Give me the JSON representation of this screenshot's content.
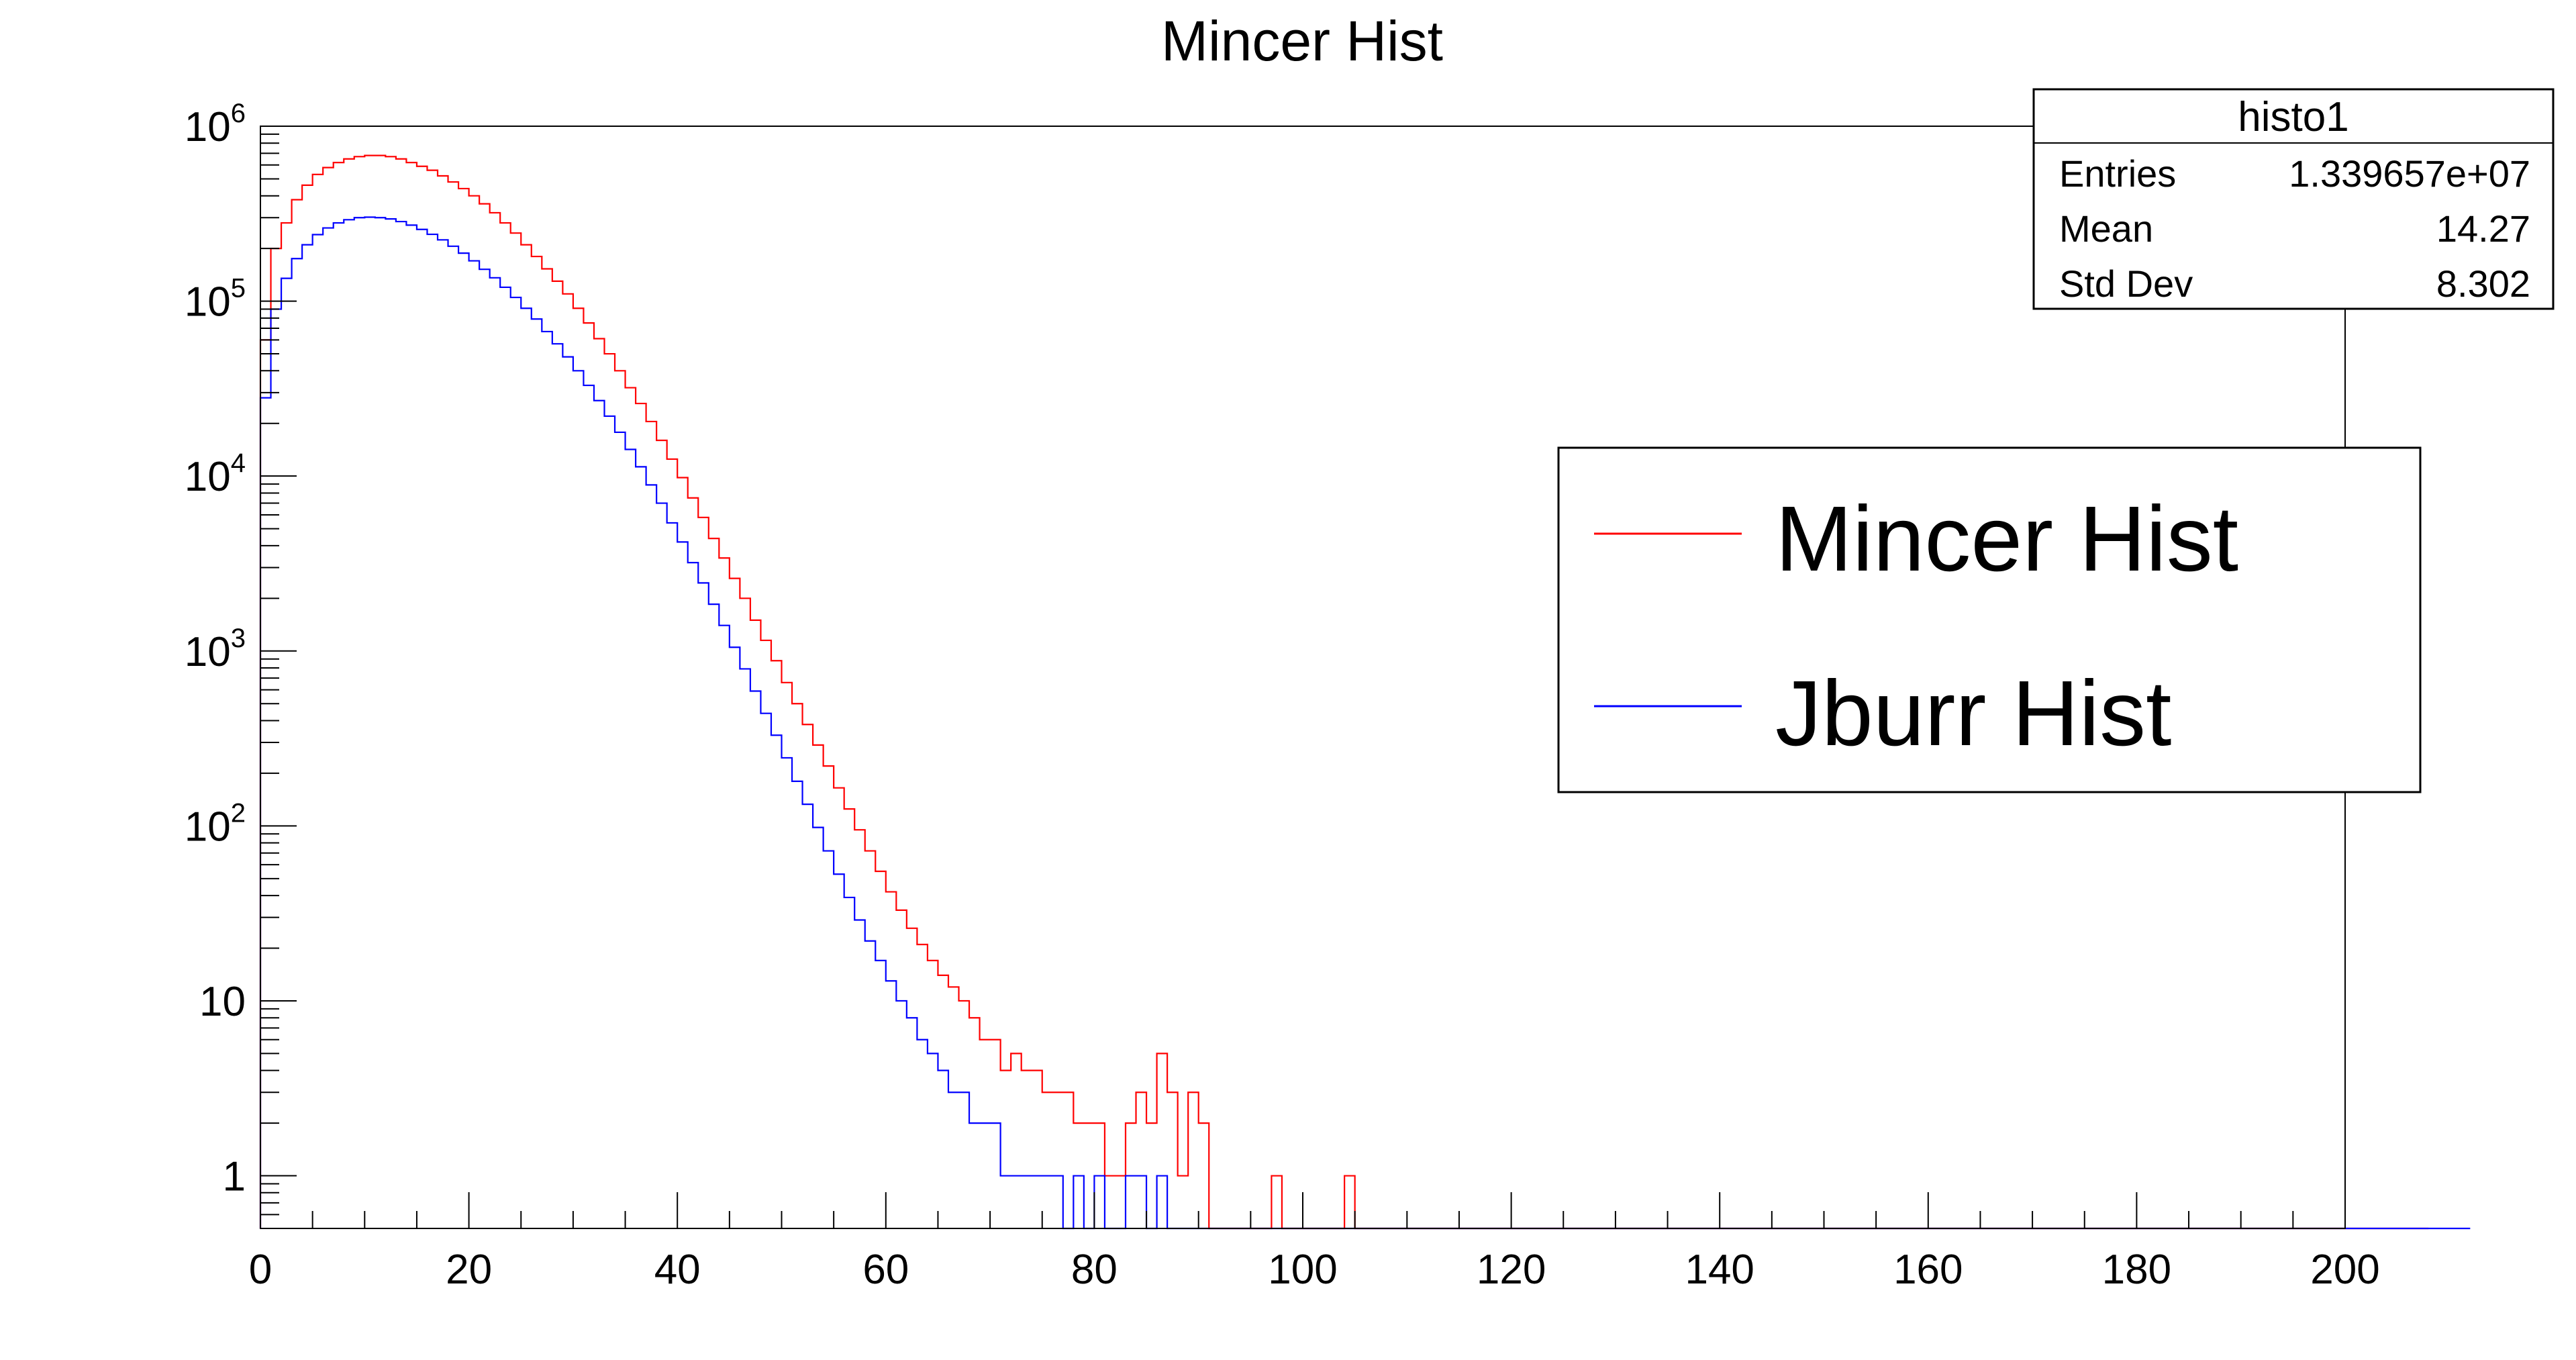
{
  "chart_data": {
    "type": "histogram",
    "title": "Mincer Hist",
    "xlabel": "",
    "ylabel": "",
    "x_range": [
      0,
      200
    ],
    "bin_width": 1,
    "y_scale": "log",
    "y_range": [
      0.5,
      1000000
    ],
    "grid": false,
    "x_ticks": [
      "0",
      "20",
      "40",
      "60",
      "80",
      "100",
      "120",
      "140",
      "160",
      "180",
      "200"
    ],
    "y_ticks": [
      {
        "base": "1",
        "exp": ""
      },
      {
        "base": "10",
        "exp": ""
      },
      {
        "base": "10",
        "exp": "2"
      },
      {
        "base": "10",
        "exp": "3"
      },
      {
        "base": "10",
        "exp": "4"
      },
      {
        "base": "10",
        "exp": "5"
      },
      {
        "base": "10",
        "exp": "6"
      }
    ],
    "series": [
      {
        "name": "Mincer Hist",
        "color": "#ff0000",
        "values": [
          60000,
          200000,
          280000,
          380000,
          460000,
          530000,
          580000,
          620000,
          650000,
          670000,
          680000,
          680000,
          670000,
          650000,
          620000,
          590000,
          560000,
          520000,
          480000,
          440000,
          400000,
          360000,
          320000,
          280000,
          245000,
          210000,
          180000,
          153000,
          130000,
          110000,
          91000,
          75000,
          61000,
          50000,
          40000,
          32000,
          26000,
          20500,
          16000,
          12500,
          9800,
          7500,
          5800,
          4400,
          3400,
          2600,
          2000,
          1500,
          1150,
          880,
          660,
          500,
          380,
          290,
          220,
          165,
          125,
          95,
          72,
          55,
          42,
          33,
          26,
          21,
          17,
          14,
          12,
          10,
          8,
          6,
          6,
          4,
          5,
          4,
          4,
          3,
          3,
          3,
          2,
          2,
          2,
          1,
          1,
          2,
          3,
          2,
          5,
          3,
          1,
          3,
          2,
          0,
          0,
          0,
          0,
          0,
          0,
          1,
          0,
          0,
          0,
          0,
          0,
          0,
          1,
          0,
          0,
          0,
          0,
          0,
          0,
          0,
          0,
          0,
          0,
          0,
          0,
          0,
          0,
          0,
          0,
          0,
          0,
          0,
          0,
          0,
          0,
          0,
          0,
          0,
          0,
          0,
          0,
          0,
          0,
          0,
          0,
          0,
          0,
          0,
          0,
          0,
          0,
          0,
          0,
          0,
          0,
          0,
          0,
          0,
          0,
          0,
          0,
          0,
          0,
          0,
          0,
          0,
          0,
          0,
          0,
          0,
          0,
          0,
          0,
          0,
          0,
          0,
          0,
          0,
          0,
          0,
          0,
          0,
          0,
          0,
          0,
          0,
          0,
          0,
          0,
          0,
          0,
          0,
          0,
          0,
          0,
          0,
          0,
          0,
          0,
          0,
          0,
          0,
          0,
          0,
          0,
          0,
          0,
          0,
          0,
          0,
          0,
          0,
          0,
          0,
          0,
          0
        ]
      },
      {
        "name": "Jburr Hist",
        "color": "#0000ff",
        "values": [
          28000,
          90000,
          135000,
          175000,
          210000,
          240000,
          262000,
          280000,
          292000,
          300000,
          302000,
          300000,
          295000,
          285000,
          272000,
          257000,
          241000,
          224000,
          206000,
          188000,
          170000,
          152000,
          136000,
          120000,
          105000,
          91000,
          79000,
          67000,
          57000,
          48000,
          40000,
          33000,
          27000,
          22000,
          17800,
          14200,
          11300,
          8900,
          7000,
          5400,
          4200,
          3200,
          2450,
          1850,
          1400,
          1050,
          790,
          590,
          440,
          330,
          245,
          180,
          133,
          98,
          72,
          53,
          39,
          29,
          22,
          17,
          13,
          10,
          8,
          6,
          5,
          4,
          3,
          3,
          2,
          2,
          2,
          1,
          1,
          1,
          1,
          1,
          1,
          0,
          1,
          0,
          1,
          0,
          0,
          1,
          1,
          0,
          1,
          0,
          0,
          0,
          0,
          0,
          0,
          0,
          0,
          0,
          0,
          0,
          0,
          0,
          0,
          0,
          0,
          0,
          0,
          0,
          0,
          0,
          0,
          0,
          0,
          0,
          0,
          0,
          0,
          0,
          0,
          0,
          0,
          0,
          0,
          0,
          0,
          0,
          0,
          0,
          0,
          0,
          0,
          0,
          0,
          0,
          0,
          0,
          0,
          0,
          0,
          0,
          0,
          0,
          0,
          0,
          0,
          0,
          0,
          0,
          0,
          0,
          0,
          0,
          0,
          0,
          0,
          0,
          0,
          0,
          0,
          0,
          0,
          0,
          0,
          0,
          0,
          0,
          0,
          0,
          0,
          0,
          0,
          0,
          0,
          0,
          0,
          0,
          0,
          0,
          0,
          0,
          0,
          0,
          0,
          0,
          0,
          0,
          0,
          0,
          0,
          0,
          0,
          0,
          0,
          0,
          0,
          0,
          0,
          0,
          0,
          0,
          0,
          0,
          0,
          0,
          0,
          0,
          0,
          0,
          0,
          0,
          0,
          0,
          0,
          0
        ]
      }
    ],
    "stats_box": {
      "title": "histo1",
      "rows": [
        {
          "label": "Entries",
          "value": "1.339657e+07"
        },
        {
          "label": "Mean",
          "value": "14.27"
        },
        {
          "label": "Std Dev",
          "value": "8.302"
        }
      ]
    },
    "legend": {
      "placement": "right",
      "entries": [
        "Mincer Hist",
        "Jburr Hist"
      ]
    }
  }
}
